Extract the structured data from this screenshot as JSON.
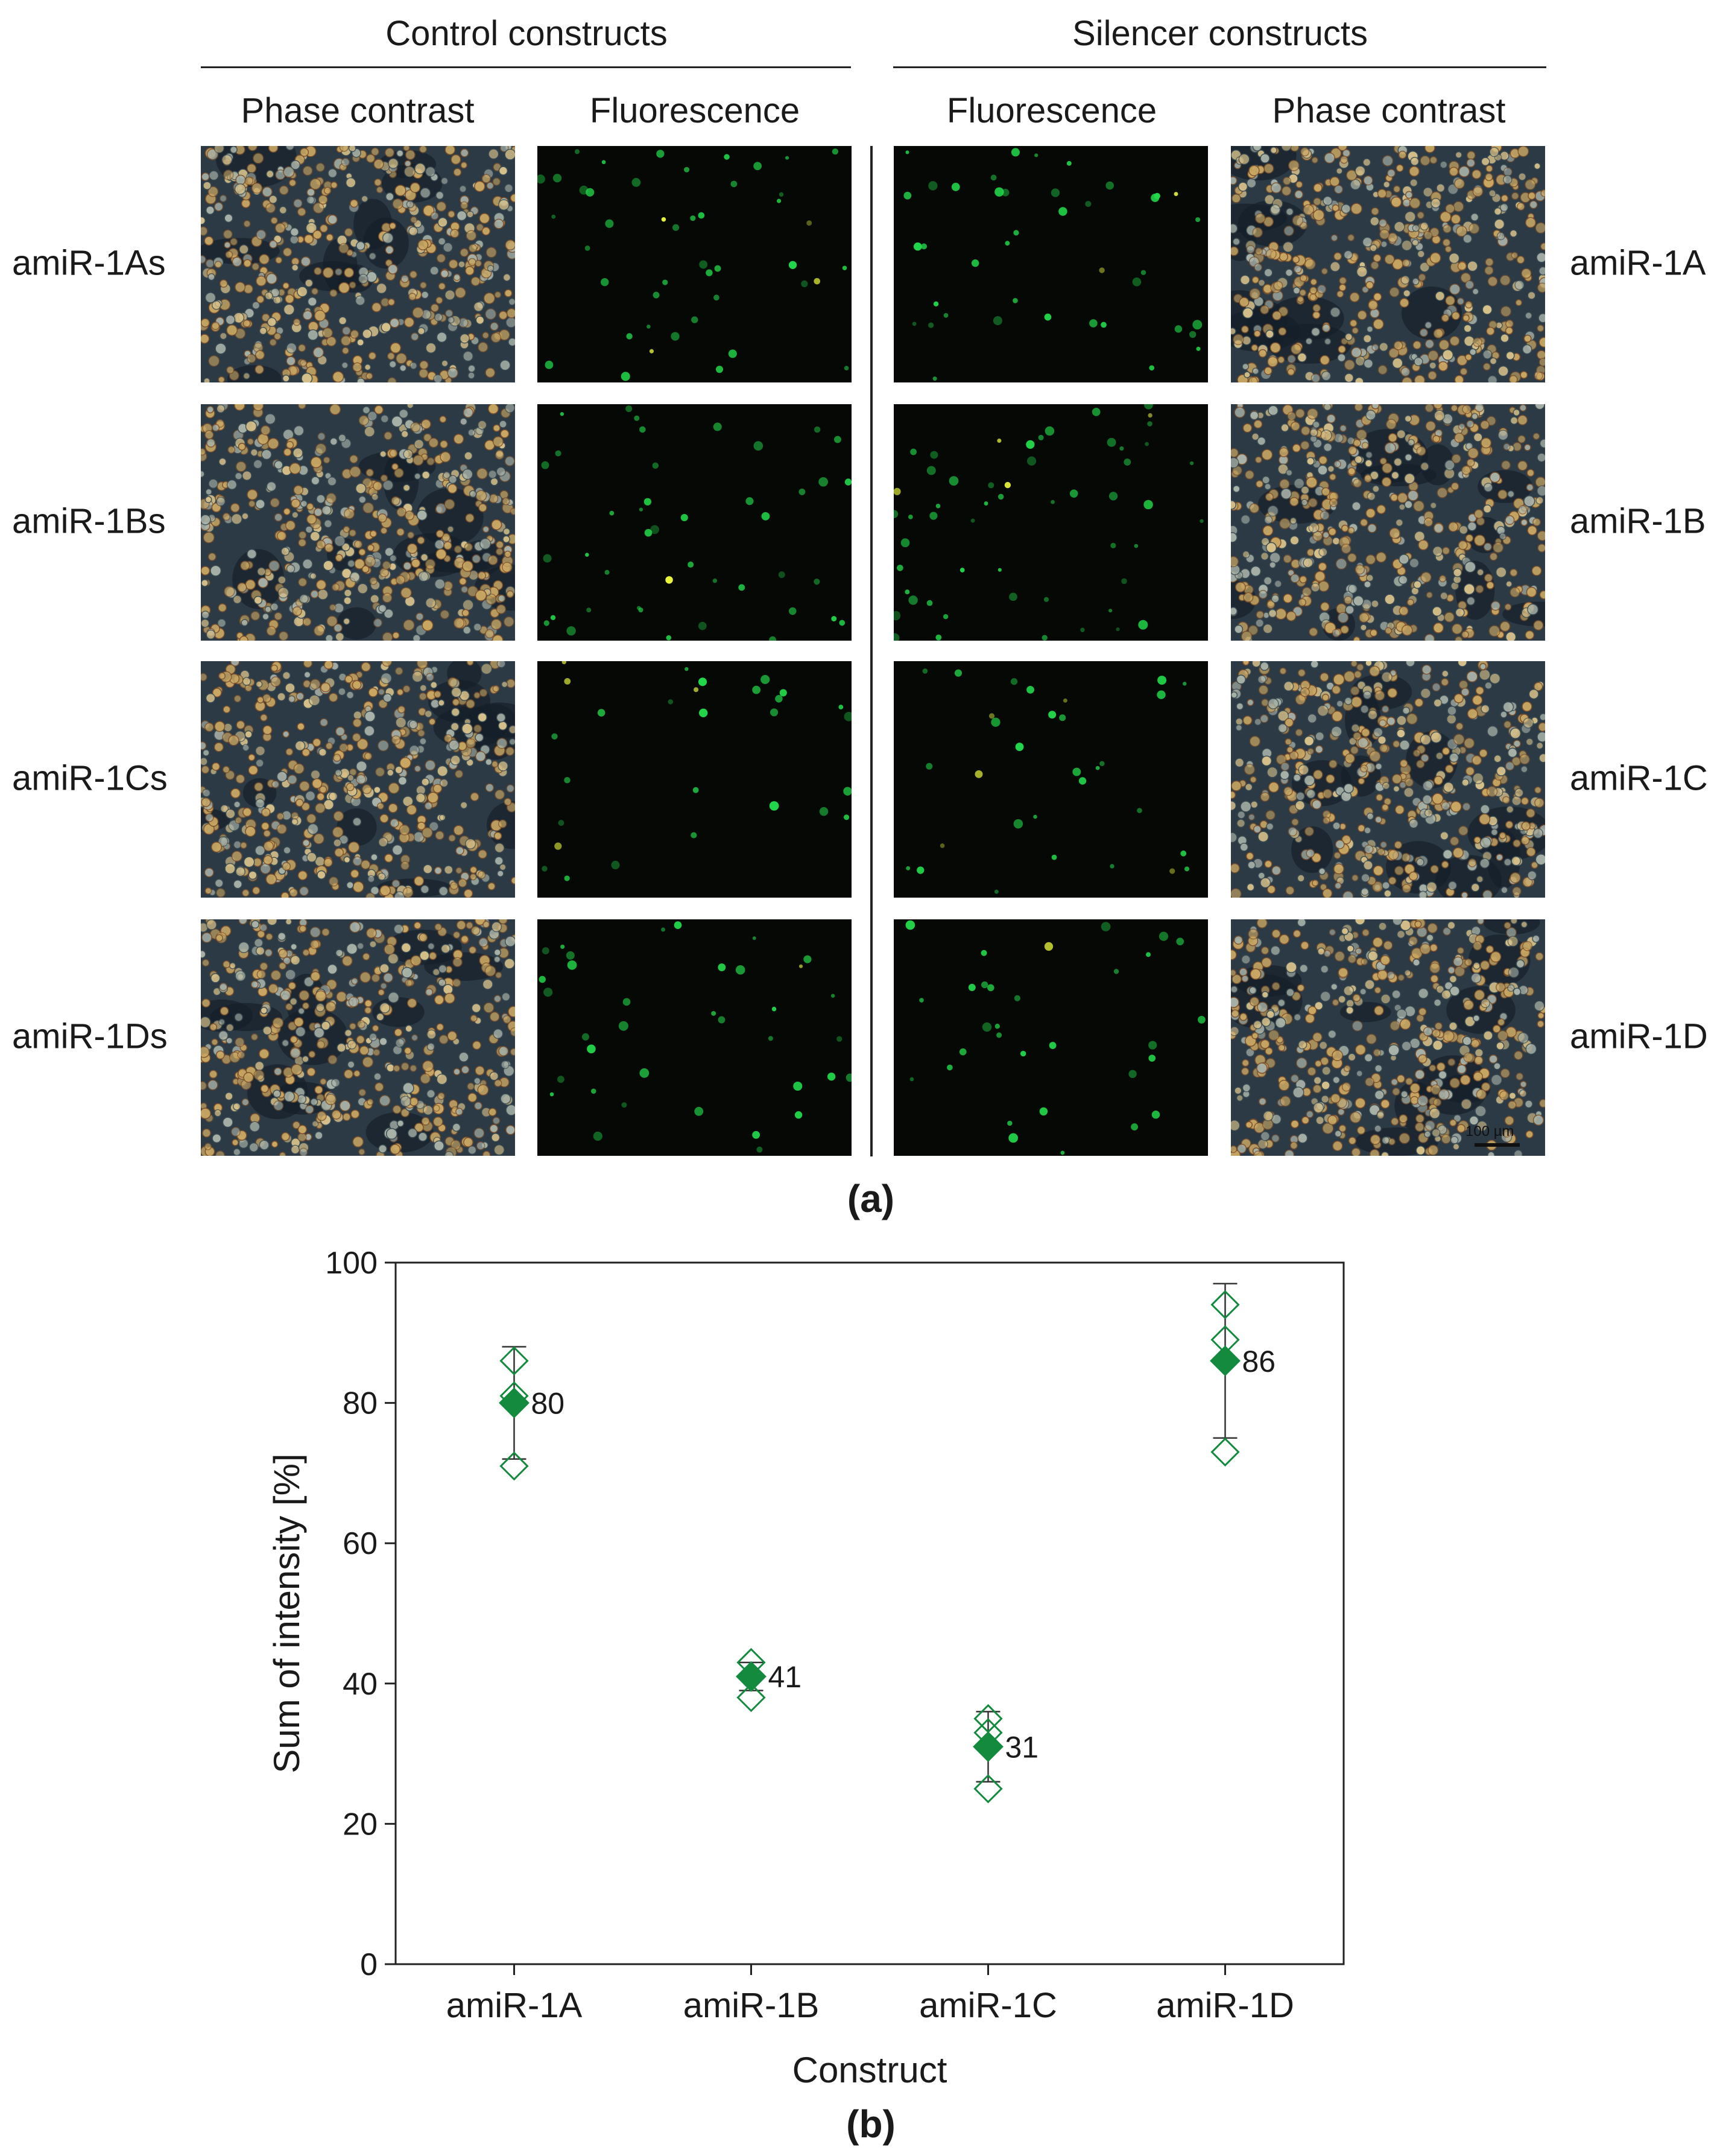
{
  "figure": {
    "group_titles": [
      "Control constructs",
      "Silencer constructs"
    ],
    "column_headers": [
      "Phase contrast",
      "Fluorescence",
      "Fluorescence",
      "Phase contrast"
    ],
    "row_labels_left": [
      "amiR-1As",
      "amiR-1Bs",
      "amiR-1Cs",
      "amiR-1Ds"
    ],
    "row_labels_right": [
      "amiR-1A",
      "amiR-1B",
      "amiR-1C",
      "amiR-1D"
    ],
    "scale_bar_label": "100 µm",
    "panel_a_label": "(a)",
    "panel_b_label": "(b)",
    "colors": {
      "phase_bg": "#2c3a46",
      "fluor_bg": "#050805",
      "cell_green": "#22d84a",
      "cell_yellow": "#e8f43a",
      "marker_green": "#138a3e"
    }
  },
  "chart_data": {
    "type": "scatter",
    "categories": [
      "amiR-1A",
      "amiR-1B",
      "amiR-1C",
      "amiR-1D"
    ],
    "means": [
      80,
      41,
      31,
      86
    ],
    "mean_labels": [
      "80",
      "41",
      "31",
      "86"
    ],
    "replicates": [
      [
        86,
        81,
        71
      ],
      [
        43,
        41,
        38
      ],
      [
        35,
        33,
        25
      ],
      [
        94,
        89,
        73
      ]
    ],
    "error_bars": [
      [
        72,
        88
      ],
      [
        39,
        43
      ],
      [
        26,
        36
      ],
      [
        75,
        97
      ]
    ],
    "xlabel": "Construct",
    "ylabel": "Sum of intensity [%]",
    "ylim": [
      0,
      100
    ],
    "yticks": [
      0,
      20,
      40,
      60,
      80,
      100
    ],
    "grid": false,
    "legend": "none"
  }
}
